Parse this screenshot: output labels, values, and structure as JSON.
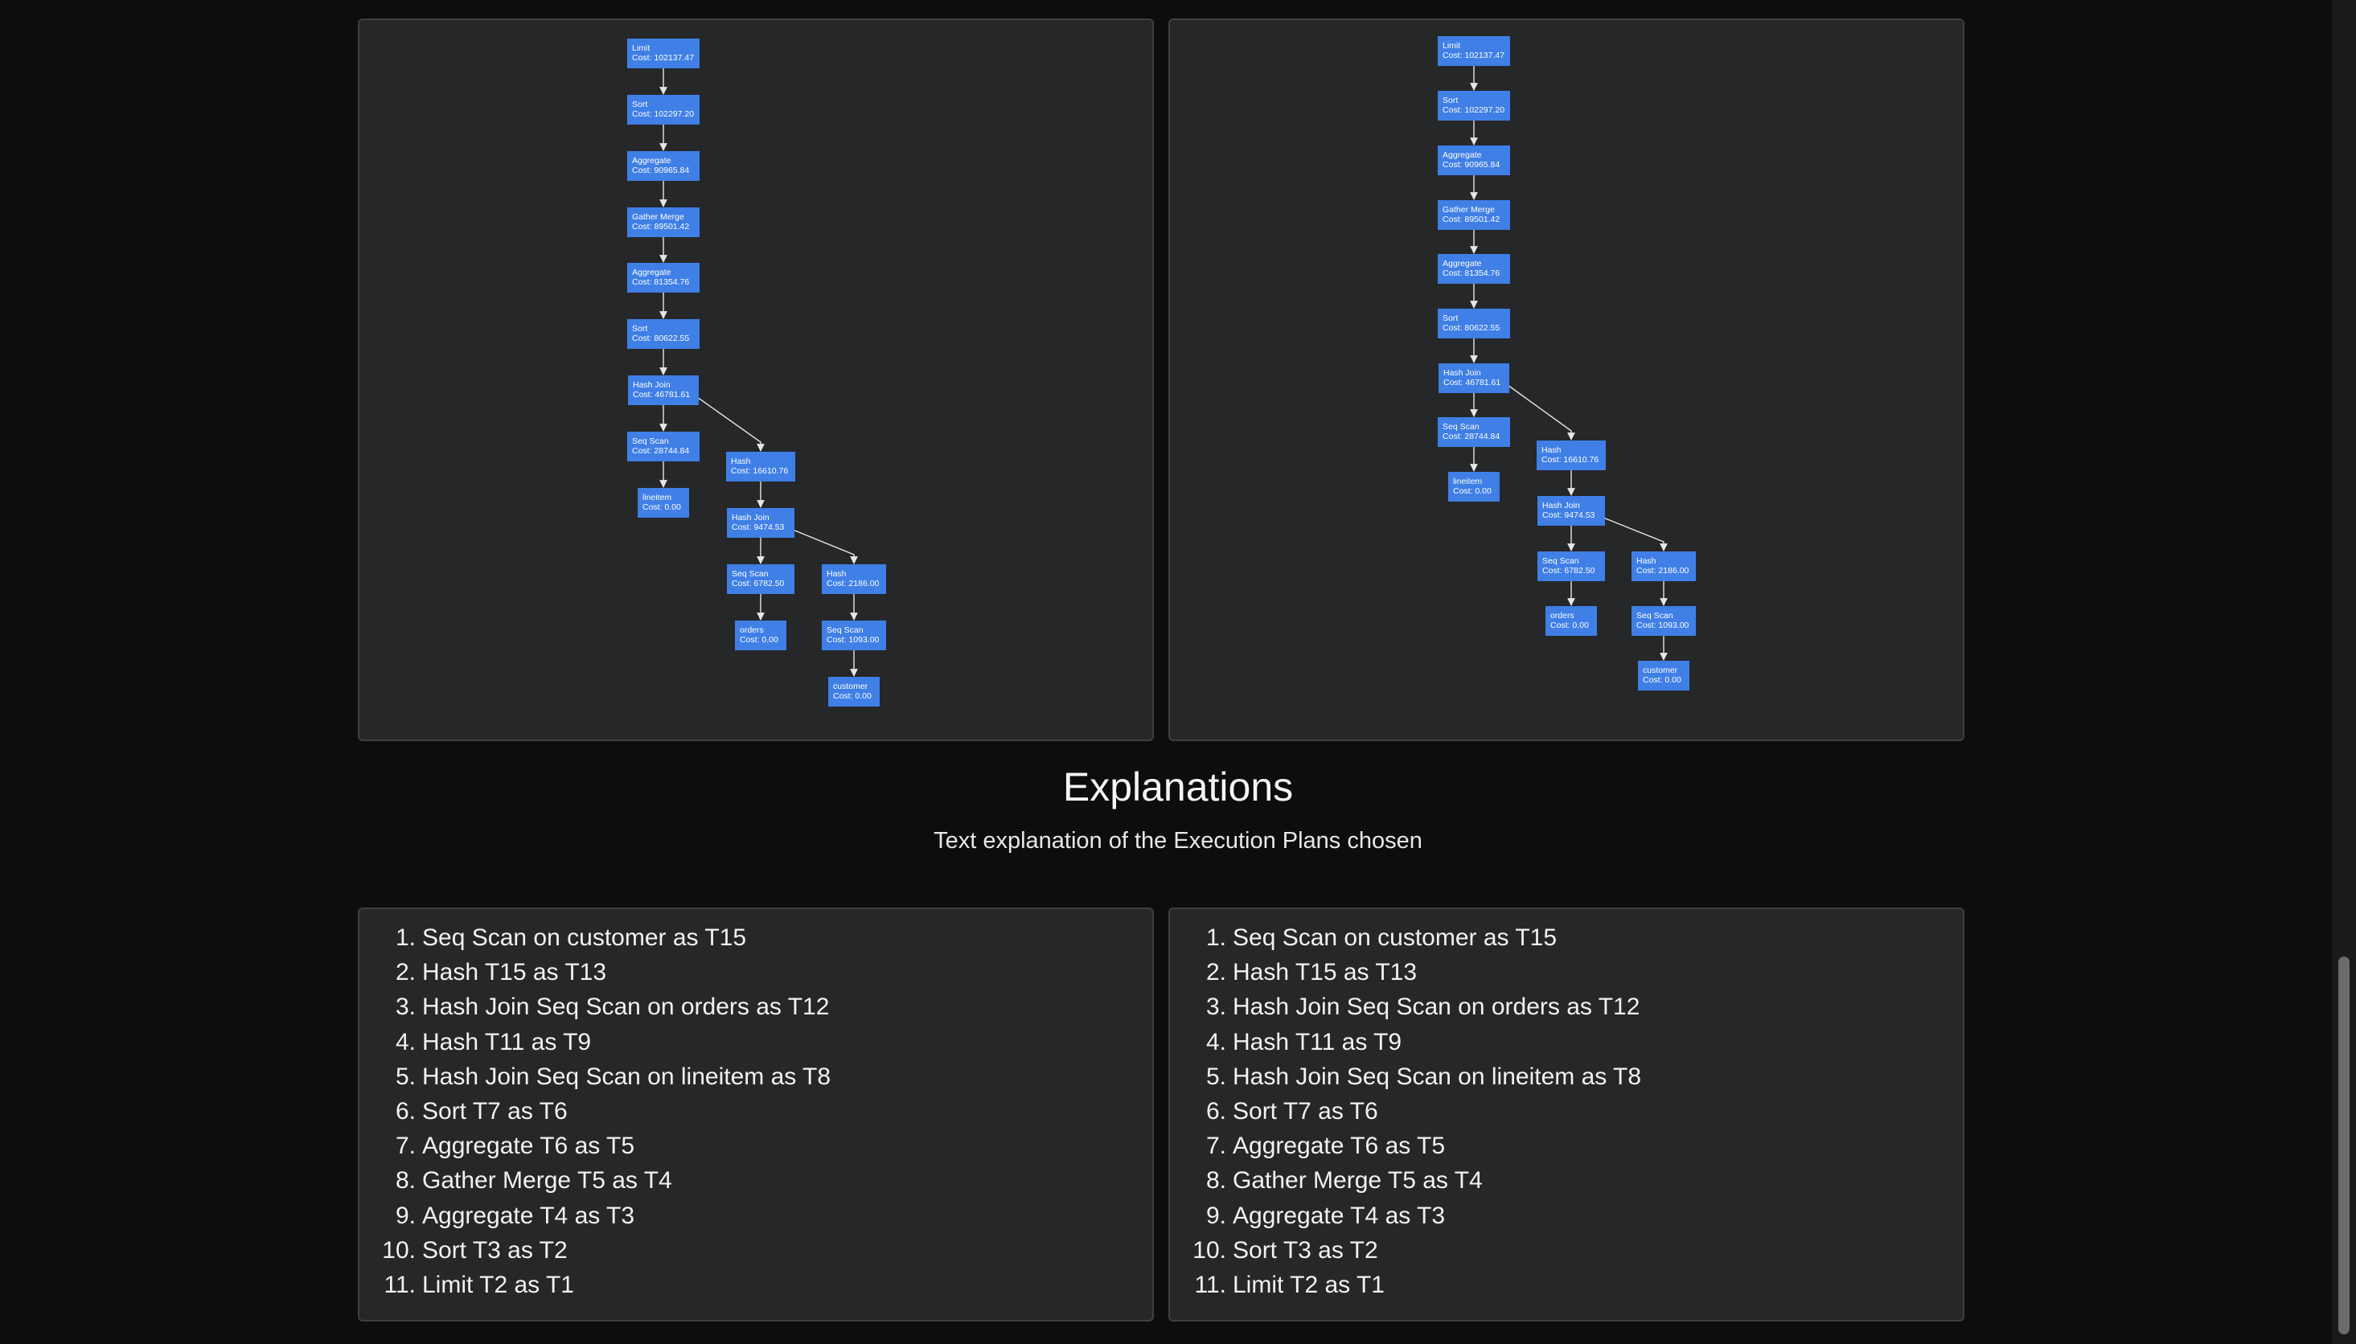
{
  "plans": [
    {
      "nodes": [
        {
          "id": "limit",
          "label": "Limit",
          "cost": "Cost: 102137.47"
        },
        {
          "id": "sort1",
          "label": "Sort",
          "cost": "Cost: 102297.20"
        },
        {
          "id": "agg1",
          "label": "Aggregate",
          "cost": "Cost: 90965.84"
        },
        {
          "id": "gather",
          "label": "Gather Merge",
          "cost": "Cost: 89501.42"
        },
        {
          "id": "agg2",
          "label": "Aggregate",
          "cost": "Cost: 81354.76"
        },
        {
          "id": "sort2",
          "label": "Sort",
          "cost": "Cost: 80622.55"
        },
        {
          "id": "hj1",
          "label": "Hash Join",
          "cost": "Cost: 46781.61"
        },
        {
          "id": "seq1",
          "label": "Seq Scan",
          "cost": "Cost: 28744.84"
        },
        {
          "id": "hash1",
          "label": "Hash",
          "cost": "Cost: 16610.76"
        },
        {
          "id": "lineitem",
          "label": "lineitem",
          "cost": "Cost: 0.00"
        },
        {
          "id": "hj2",
          "label": "Hash Join",
          "cost": "Cost: 9474.53"
        },
        {
          "id": "seq2",
          "label": "Seq Scan",
          "cost": "Cost: 6782.50"
        },
        {
          "id": "hash2",
          "label": "Hash",
          "cost": "Cost: 2186.00"
        },
        {
          "id": "orders",
          "label": "orders",
          "cost": "Cost: 0.00"
        },
        {
          "id": "seq3",
          "label": "Seq Scan",
          "cost": "Cost: 1093.00"
        },
        {
          "id": "customer",
          "label": "customer",
          "cost": "Cost: 0.00"
        }
      ],
      "edges": [
        [
          "limit",
          "sort1"
        ],
        [
          "sort1",
          "agg1"
        ],
        [
          "agg1",
          "gather"
        ],
        [
          "gather",
          "agg2"
        ],
        [
          "agg2",
          "sort2"
        ],
        [
          "sort2",
          "hj1"
        ],
        [
          "hj1",
          "seq1"
        ],
        [
          "hj1",
          "hash1"
        ],
        [
          "seq1",
          "lineitem"
        ],
        [
          "hash1",
          "hj2"
        ],
        [
          "hj2",
          "seq2"
        ],
        [
          "hj2",
          "hash2"
        ],
        [
          "seq2",
          "orders"
        ],
        [
          "hash2",
          "seq3"
        ],
        [
          "seq3",
          "customer"
        ]
      ]
    },
    {
      "nodes": [
        {
          "id": "limit",
          "label": "Limit",
          "cost": "Cost: 102137.47"
        },
        {
          "id": "sort1",
          "label": "Sort",
          "cost": "Cost: 102297.20"
        },
        {
          "id": "agg1",
          "label": "Aggregate",
          "cost": "Cost: 90965.84"
        },
        {
          "id": "gather",
          "label": "Gather Merge",
          "cost": "Cost: 89501.42"
        },
        {
          "id": "agg2",
          "label": "Aggregate",
          "cost": "Cost: 81354.76"
        },
        {
          "id": "sort2",
          "label": "Sort",
          "cost": "Cost: 80622.55"
        },
        {
          "id": "hj1",
          "label": "Hash Join",
          "cost": "Cost: 46781.61"
        },
        {
          "id": "seq1",
          "label": "Seq Scan",
          "cost": "Cost: 28744.84"
        },
        {
          "id": "hash1",
          "label": "Hash",
          "cost": "Cost: 16610.76"
        },
        {
          "id": "lineitem",
          "label": "lineitem",
          "cost": "Cost: 0.00"
        },
        {
          "id": "hj2",
          "label": "Hash Join",
          "cost": "Cost: 9474.53"
        },
        {
          "id": "seq2",
          "label": "Seq Scan",
          "cost": "Cost: 6782.50"
        },
        {
          "id": "hash2",
          "label": "Hash",
          "cost": "Cost: 2186.00"
        },
        {
          "id": "orders",
          "label": "orders",
          "cost": "Cost: 0.00"
        },
        {
          "id": "seq3",
          "label": "Seq Scan",
          "cost": "Cost: 1093.00"
        },
        {
          "id": "customer",
          "label": "customer",
          "cost": "Cost: 0.00"
        }
      ],
      "edges": [
        [
          "limit",
          "sort1"
        ],
        [
          "sort1",
          "agg1"
        ],
        [
          "agg1",
          "gather"
        ],
        [
          "gather",
          "agg2"
        ],
        [
          "agg2",
          "sort2"
        ],
        [
          "sort2",
          "hj1"
        ],
        [
          "hj1",
          "seq1"
        ],
        [
          "hj1",
          "hash1"
        ],
        [
          "seq1",
          "lineitem"
        ],
        [
          "hash1",
          "hj2"
        ],
        [
          "hj2",
          "seq2"
        ],
        [
          "hj2",
          "hash2"
        ],
        [
          "seq2",
          "orders"
        ],
        [
          "hash2",
          "seq3"
        ],
        [
          "seq3",
          "customer"
        ]
      ]
    }
  ],
  "explanations": {
    "title": "Explanations",
    "subtitle": "Text explanation of the Execution Plans chosen",
    "left": [
      {
        "num": "1.",
        "text": "Seq Scan on customer as T15"
      },
      {
        "num": "2.",
        "text": "Hash T15 as T13"
      },
      {
        "num": "3.",
        "text": "Hash Join Seq Scan on orders as T12"
      },
      {
        "num": "4.",
        "text": "Hash T11 as T9"
      },
      {
        "num": "5.",
        "text": "Hash Join Seq Scan on lineitem as T8"
      },
      {
        "num": "6.",
        "text": "Sort T7 as T6"
      },
      {
        "num": "7.",
        "text": "Aggregate T6 as T5"
      },
      {
        "num": "8.",
        "text": "Gather Merge T5 as T4"
      },
      {
        "num": "9.",
        "text": "Aggregate T4 as T3"
      },
      {
        "num": "10.",
        "text": "Sort T3 as T2"
      },
      {
        "num": "11.",
        "text": "Limit T2 as T1"
      }
    ],
    "right": [
      {
        "num": "1.",
        "text": "Seq Scan on customer as T15"
      },
      {
        "num": "2.",
        "text": "Hash T15 as T13"
      },
      {
        "num": "3.",
        "text": "Hash Join Seq Scan on orders as T12"
      },
      {
        "num": "4.",
        "text": "Hash T11 as T9"
      },
      {
        "num": "5.",
        "text": "Hash Join Seq Scan on lineitem as T8"
      },
      {
        "num": "6.",
        "text": "Sort T7 as T6"
      },
      {
        "num": "7.",
        "text": "Aggregate T6 as T5"
      },
      {
        "num": "8.",
        "text": "Gather Merge T5 as T4"
      },
      {
        "num": "9.",
        "text": "Aggregate T4 as T3"
      },
      {
        "num": "10.",
        "text": "Sort T3 as T2"
      },
      {
        "num": "11.",
        "text": "Limit T2 as T1"
      }
    ]
  },
  "colors": {
    "node": "#3f7fe6",
    "panel": "#262728",
    "background": "#0d0d0d"
  }
}
